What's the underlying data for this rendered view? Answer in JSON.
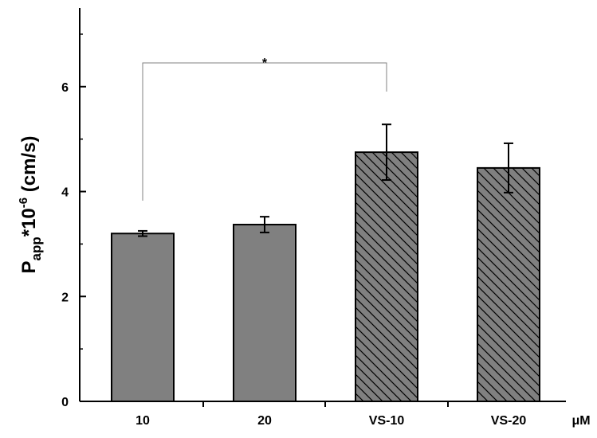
{
  "chart_data": {
    "type": "bar",
    "title": "",
    "xlabel": "",
    "x_unit": "μM",
    "ylabel": {
      "main": "P",
      "subscript": "app",
      "mid": "*10",
      "superscript": "-6",
      "tail": " (cm/s)"
    },
    "ylim": [
      0,
      7.5
    ],
    "y_ticks": [
      0,
      2,
      4,
      6
    ],
    "y_tick_labels": [
      "0",
      "2",
      "4",
      "6"
    ],
    "categories": [
      "10",
      "20",
      "VS-10",
      "VS-20"
    ],
    "values": [
      3.2,
      3.37,
      4.75,
      4.45
    ],
    "errors": [
      0.05,
      0.15,
      0.53,
      0.47
    ],
    "bar_styles": [
      "solid",
      "solid",
      "hatched",
      "hatched"
    ],
    "bar_color": "#808080",
    "hatch_color": "#000000",
    "significance": {
      "from": "10",
      "to": "VS-10",
      "label": "*"
    },
    "grid": false,
    "legend": "none"
  }
}
